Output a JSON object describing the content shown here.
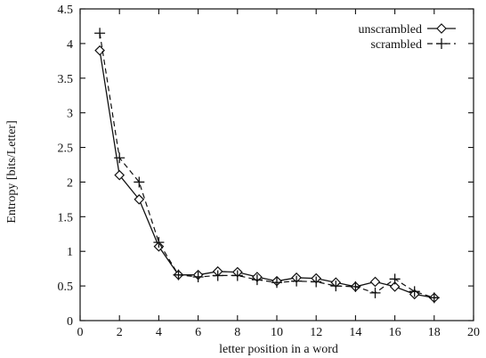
{
  "chart_data": {
    "type": "line",
    "title": "",
    "xlabel": "letter position in a word",
    "ylabel": "Entropy [bits/Letter]",
    "xlim": [
      0,
      20
    ],
    "ylim": [
      0,
      4.5
    ],
    "x_ticks": [
      0,
      2,
      4,
      6,
      8,
      10,
      12,
      14,
      16,
      18,
      20
    ],
    "y_ticks": [
      0,
      0.5,
      1,
      1.5,
      2,
      2.5,
      3,
      3.5,
      4,
      4.5
    ],
    "x_tick_labels": [
      "0",
      "2",
      "4",
      "6",
      "8",
      "10",
      "12",
      "14",
      "16",
      "18",
      "20"
    ],
    "y_tick_labels": [
      "0",
      "0.5",
      "1",
      "1.5",
      "2",
      "2.5",
      "3",
      "3.5",
      "4",
      "4.5"
    ],
    "grid": false,
    "legend_position": "top-right",
    "series": [
      {
        "name": "unscrambled",
        "line_style": "solid",
        "marker": "diamond",
        "x": [
          1,
          2,
          3,
          4,
          5,
          6,
          7,
          8,
          9,
          10,
          11,
          12,
          13,
          14,
          15,
          16,
          17,
          18
        ],
        "y": [
          3.9,
          2.1,
          1.75,
          1.07,
          0.66,
          0.66,
          0.71,
          0.7,
          0.63,
          0.57,
          0.62,
          0.61,
          0.55,
          0.49,
          0.56,
          0.49,
          0.38,
          0.33
        ]
      },
      {
        "name": "scrambled",
        "line_style": "dashed",
        "marker": "plus",
        "x": [
          1,
          2,
          3,
          4,
          5,
          6,
          7,
          8,
          9,
          10,
          11,
          12,
          13,
          14,
          15,
          16,
          17,
          18
        ],
        "y": [
          4.15,
          2.35,
          2.0,
          1.13,
          0.66,
          0.63,
          0.65,
          0.65,
          0.59,
          0.55,
          0.57,
          0.56,
          0.5,
          0.49,
          0.4,
          0.6,
          0.42,
          0.33
        ]
      }
    ]
  }
}
